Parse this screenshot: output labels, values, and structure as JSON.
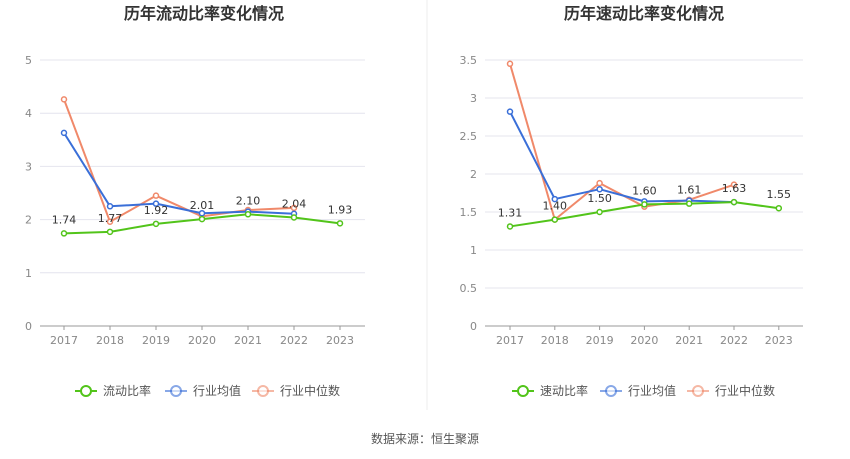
{
  "colors": {
    "main": "#52c41a",
    "avg": "#3a6fd8",
    "median": "#f0896a",
    "axis": "#999999",
    "grid": "#e4e4ee",
    "divider": "#eeeeee"
  },
  "source": "数据来源：恒生聚源",
  "chart_data": [
    {
      "type": "line",
      "title": "历年流动比率变化情况",
      "categories": [
        "2017",
        "2018",
        "2019",
        "2020",
        "2021",
        "2022",
        "2023"
      ],
      "ylim": [
        0,
        5
      ],
      "yticks": [
        "0",
        "1",
        "2",
        "3",
        "4",
        "5"
      ],
      "grid": true,
      "legend_position": "bottom-center",
      "series": [
        {
          "name": "流动比率",
          "color_key": "main",
          "values": [
            1.74,
            1.77,
            1.92,
            2.01,
            2.1,
            2.04,
            1.93
          ],
          "labels": [
            "1.74",
            "1.77",
            "1.92",
            "2.01",
            "2.10",
            "2.04",
            "1.93"
          ]
        },
        {
          "name": "行业均值",
          "color_key": "avg",
          "values": [
            3.63,
            2.25,
            2.3,
            2.12,
            2.15,
            2.11,
            null
          ],
          "labels": []
        },
        {
          "name": "行业中位数",
          "color_key": "median",
          "values": [
            4.26,
            1.96,
            2.45,
            2.06,
            2.18,
            2.22,
            null
          ],
          "labels": []
        }
      ]
    },
    {
      "type": "line",
      "title": "历年速动比率变化情况",
      "categories": [
        "2017",
        "2018",
        "2019",
        "2020",
        "2021",
        "2022",
        "2023"
      ],
      "ylim": [
        0,
        3.5
      ],
      "yticks": [
        "0",
        "0.5",
        "1",
        "1.5",
        "2",
        "2.5",
        "3",
        "3.5"
      ],
      "grid": true,
      "legend_position": "bottom-center",
      "series": [
        {
          "name": "速动比率",
          "color_key": "main",
          "values": [
            1.31,
            1.4,
            1.5,
            1.6,
            1.61,
            1.63,
            1.55
          ],
          "labels": [
            "1.31",
            "1.40",
            "1.50",
            "1.60",
            "1.61",
            "1.63",
            "1.55"
          ]
        },
        {
          "name": "行业均值",
          "color_key": "avg",
          "values": [
            2.82,
            1.67,
            1.8,
            1.64,
            1.65,
            1.63,
            null
          ],
          "labels": []
        },
        {
          "name": "行业中位数",
          "color_key": "median",
          "values": [
            3.45,
            1.4,
            1.88,
            1.57,
            1.66,
            1.86,
            null
          ],
          "labels": []
        }
      ]
    }
  ]
}
